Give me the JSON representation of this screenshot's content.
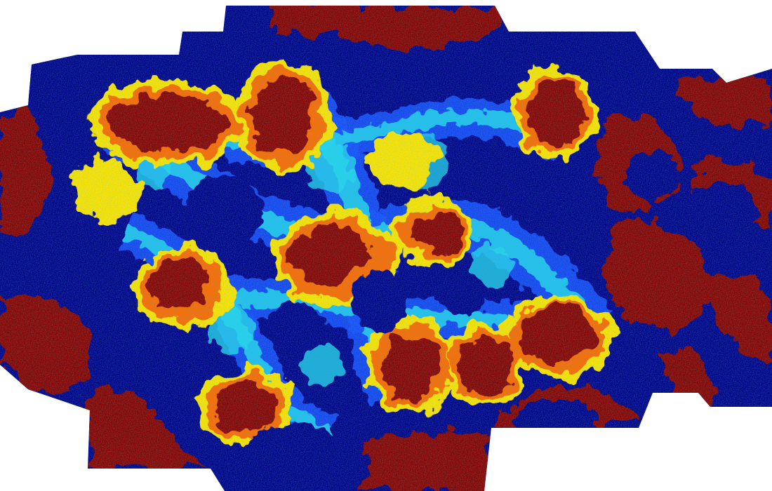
{
  "image": {
    "kind": "false-color density map",
    "colormap": "jet",
    "background": "#ffffff",
    "colors": {
      "low": "#00008b",
      "low_mid": "#0033ff",
      "mid": "#22d6f0",
      "mid_high": "#ffe400",
      "high_mid": "#ff6a00",
      "high": "#8b0000"
    }
  }
}
